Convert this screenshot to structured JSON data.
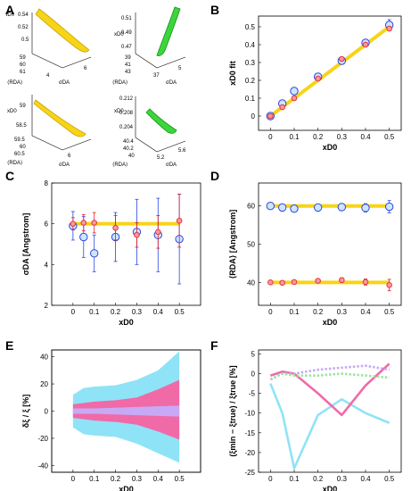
{
  "panel_labels": [
    "A",
    "B",
    "C",
    "D",
    "E",
    "F"
  ],
  "colors": {
    "yellow": "#f7d417",
    "yellow_dark": "#c9a400",
    "green": "#3ad63a",
    "green_dark": "#1a8f1a",
    "blue": "#5aa8e8",
    "red": "#e8363c",
    "pink": "#f06aa8",
    "cyan": "#8fe3f7",
    "lavender": "#c7a9f5",
    "light_green": "#9fe39f"
  },
  "panel_A": {
    "sub": [
      {
        "z_label": "τD0",
        "x_label": "σDA",
        "y_label": "⟨RDA⟩",
        "z_ticks": [
          "0.54",
          "0.52",
          "0.5"
        ],
        "y_ticks": [
          "59",
          "60",
          "61"
        ],
        "x_ticks": [
          "4",
          "6"
        ],
        "color": "yellow"
      },
      {
        "z_label": "xD0",
        "x_label": "σDA",
        "y_label": "⟨RDA⟩",
        "z_ticks": [
          "0.51",
          "0.49",
          "0.47"
        ],
        "y_ticks": [
          "39",
          "41",
          "43"
        ],
        "x_ticks": [
          "37",
          "5"
        ],
        "color": "green"
      },
      {
        "z_label": "xD0",
        "x_label": "σDA",
        "y_label": "⟨RDA⟩",
        "z_ticks": [
          "59",
          "58.5"
        ],
        "y_ticks": [
          "59.5",
          "60",
          "60.5"
        ],
        "x_ticks": [
          "6"
        ],
        "color": "yellow"
      },
      {
        "z_label": "xD0",
        "x_label": "σDA",
        "y_label": "⟨RDA⟩",
        "z_ticks": [
          "0.212",
          "0.208",
          "0.204"
        ],
        "y_ticks": [
          "40.4",
          "40.2",
          "40"
        ],
        "x_ticks": [
          "5.2",
          "5.6"
        ],
        "color": "green"
      }
    ]
  },
  "chart_data": [
    {
      "panel": "B",
      "type": "scatter",
      "xlabel": "xD0",
      "ylabel": "xD0 fit",
      "xlim": [
        -0.05,
        0.55
      ],
      "ylim": [
        -0.08,
        0.56
      ],
      "x_ticks": [
        "0",
        "0.1",
        "0.2",
        "0.3",
        "0.4",
        "0.5"
      ],
      "y_ticks": [
        "0",
        "0.1",
        "0.2",
        "0.3",
        "0.4",
        "0.5"
      ],
      "x": [
        0,
        0.05,
        0.1,
        0.2,
        0.3,
        0.4,
        0.5
      ],
      "fit_line": {
        "x": [
          0,
          0.5
        ],
        "y": [
          0,
          0.5
        ]
      },
      "series": [
        {
          "marker": "blue circle",
          "values": [
            0.0,
            0.07,
            0.14,
            0.22,
            0.31,
            0.41,
            0.51
          ],
          "err": [
            0.01,
            0.02,
            0.02,
            0.02,
            0.02,
            0.02,
            0.03
          ]
        },
        {
          "marker": "red circle",
          "values": [
            0.0,
            0.05,
            0.1,
            0.21,
            0.32,
            0.4,
            0.49
          ],
          "err": [
            0.01,
            0.01,
            0.01,
            0.01,
            0.01,
            0.01,
            0.01
          ]
        }
      ]
    },
    {
      "panel": "C",
      "type": "scatter",
      "xlabel": "xD0",
      "ylabel": "σDA [Angstrom]",
      "xlim": [
        -0.1,
        0.6
      ],
      "ylim": [
        2,
        8
      ],
      "x_ticks": [
        "0",
        "0.1",
        "0.2",
        "0.3",
        "0.4",
        "0.5"
      ],
      "y_ticks": [
        "2",
        "4",
        "6",
        "8"
      ],
      "x": [
        0,
        0.05,
        0.1,
        0.2,
        0.3,
        0.4,
        0.5
      ],
      "reference_line": 6.0,
      "series": [
        {
          "marker": "blue circle",
          "values": [
            5.9,
            5.35,
            4.55,
            5.35,
            5.6,
            5.45,
            5.25
          ],
          "err": [
            0.7,
            1.0,
            0.9,
            1.2,
            1.6,
            1.8,
            2.2
          ]
        },
        {
          "marker": "red circle",
          "values": [
            6.0,
            6.05,
            6.05,
            5.8,
            5.45,
            5.6,
            6.15
          ],
          "err": [
            0.3,
            0.4,
            0.5,
            0.6,
            0.6,
            0.8,
            1.3
          ]
        }
      ]
    },
    {
      "panel": "D",
      "type": "scatter",
      "xlabel": "xD0",
      "ylabel": "⟨RDA⟩ [Angstrom]",
      "xlim": [
        -0.05,
        0.55
      ],
      "ylim": [
        34,
        66
      ],
      "x_ticks": [
        "0",
        "0.1",
        "0.2",
        "0.3",
        "0.4",
        "0.5"
      ],
      "y_ticks": [
        "40",
        "50",
        "60"
      ],
      "x": [
        0,
        0.05,
        0.1,
        0.2,
        0.3,
        0.4,
        0.5
      ],
      "reference_lines": [
        60,
        40
      ],
      "series": [
        {
          "marker": "blue circle",
          "values": [
            60.0,
            59.6,
            59.3,
            59.6,
            59.7,
            59.5,
            59.8
          ],
          "err": [
            0.5,
            0.6,
            0.7,
            0.8,
            0.9,
            1.1,
            1.6
          ]
        },
        {
          "marker": "red circle",
          "values": [
            40.0,
            39.9,
            40.1,
            40.4,
            40.6,
            40.1,
            39.3
          ],
          "err": [
            0.3,
            0.3,
            0.4,
            0.5,
            0.6,
            0.8,
            1.5
          ]
        }
      ]
    },
    {
      "panel": "E",
      "type": "area",
      "xlabel": "xD0",
      "ylabel": "δξ / ξ [%]",
      "xlim": [
        -0.1,
        0.6
      ],
      "ylim": [
        -45,
        45
      ],
      "x_ticks": [
        "0",
        "0.1",
        "0.2",
        "0.3",
        "0.4",
        "0.5"
      ],
      "y_ticks": [
        "-40",
        "-20",
        "0",
        "20",
        "40"
      ],
      "x": [
        0,
        0.05,
        0.1,
        0.2,
        0.3,
        0.4,
        0.5
      ],
      "bands": [
        {
          "color": "cyan",
          "upper": [
            12,
            17,
            18,
            19,
            23,
            30,
            44
          ],
          "lower": [
            -12,
            -17,
            -18,
            -19,
            -24,
            -31,
            -38
          ]
        },
        {
          "color": "pink",
          "upper": [
            5,
            6,
            7,
            8,
            10,
            16,
            23
          ],
          "lower": [
            -5,
            -6,
            -7,
            -8,
            -10,
            -15,
            -21
          ]
        },
        {
          "color": "lavender",
          "upper": [
            2,
            2,
            2,
            2.5,
            3,
            3.5,
            4
          ],
          "lower": [
            -2,
            -2,
            -2,
            -2.5,
            -3,
            -3.5,
            -4
          ]
        }
      ]
    },
    {
      "panel": "F",
      "type": "line",
      "xlabel": "xD0",
      "ylabel": "(ξmin − ξtrue) / ξtrue [%]",
      "xlim": [
        -0.05,
        0.55
      ],
      "ylim": [
        -25,
        6
      ],
      "x_ticks": [
        "0",
        "0.1",
        "0.2",
        "0.3",
        "0.4",
        "0.5"
      ],
      "y_ticks": [
        "-25",
        "-20",
        "-15",
        "-10",
        "-5",
        "0",
        "5"
      ],
      "x": [
        0,
        0.05,
        0.1,
        0.2,
        0.3,
        0.4,
        0.5
      ],
      "series": [
        {
          "color": "cyan",
          "style": "solid",
          "values": [
            -2.5,
            -10,
            -24,
            -10.5,
            -6.5,
            -10,
            -12.5
          ]
        },
        {
          "color": "pink",
          "style": "solid",
          "values": [
            -0.5,
            0.5,
            0,
            -5,
            -10.5,
            -3,
            2.5
          ]
        },
        {
          "color": "lavender",
          "style": "dotted",
          "values": [
            -1.5,
            0,
            0,
            1,
            1.5,
            2,
            1
          ]
        },
        {
          "color": "light_green",
          "style": "dotted",
          "values": [
            -1.5,
            0,
            -0.5,
            -0.5,
            0,
            -0.5,
            -1
          ]
        }
      ]
    }
  ]
}
